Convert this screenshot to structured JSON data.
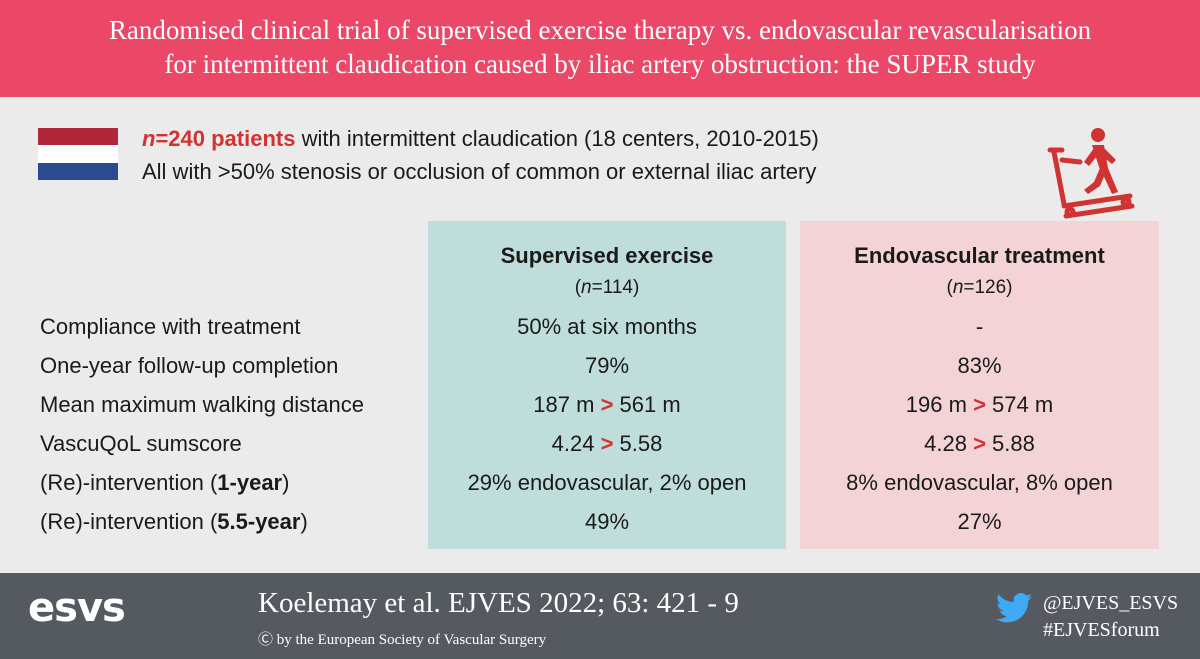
{
  "header": {
    "line1": "Randomised clinical trial of supervised exercise therapy vs. endovascular revascularisation",
    "line2": "for intermittent claudication caused by iliac artery obstruction: the SUPER study"
  },
  "intro": {
    "n_label": "n",
    "n_value": "=240 patients",
    "line1_rest": " with intermittent claudication (18 centers, 2010-2015)",
    "line2": "All with >50% stenosis or occlusion of common or external iliac artery"
  },
  "icons": {
    "flag": "netherlands-flag",
    "treadmill": "treadmill-icon",
    "twitter": "twitter-bird-icon"
  },
  "colors": {
    "header": "#ea4866",
    "accent": "#d13232",
    "exercise_bg": "#bfdedb",
    "endo_bg": "#f3d3d6",
    "footer": "#555a60"
  },
  "columns": {
    "exercise": {
      "title": "Supervised exercise",
      "n_open": "(",
      "n_label": "n",
      "n_value": "=114)"
    },
    "endovascular": {
      "title": "Endovascular treatment",
      "n_open": "(",
      "n_label": "n",
      "n_value": "=126)"
    }
  },
  "rows": [
    {
      "label": "Compliance with treatment",
      "exercise": "50% at six months",
      "endovascular": "-"
    },
    {
      "label": "One-year follow-up completion",
      "exercise": "79%",
      "endovascular": "83%"
    },
    {
      "label": "Mean maximum walking distance",
      "exercise_a": "187 m",
      "exercise_b": "561 m",
      "endo_a": "196 m",
      "endo_b": "574 m",
      "arrow": ">"
    },
    {
      "label": "VascuQoL sumscore",
      "exercise_a": "4.24",
      "exercise_b": "5.58",
      "endo_a": "4.28",
      "endo_b": "5.88",
      "arrow": ">"
    },
    {
      "label_pre": "(Re)-intervention (",
      "label_bold": "1-year",
      "label_post": ")",
      "exercise": "29% endovascular, 2% open",
      "endovascular": "8% endovascular, 8% open"
    },
    {
      "label_pre": "(Re)-intervention (",
      "label_bold": "5.5-year",
      "label_post": ")",
      "exercise": "49%",
      "endovascular": "27%"
    }
  ],
  "footer": {
    "logo": "esvs",
    "citation": "Koelemay et al. EJVES 2022; 63: 421 - 9",
    "copyright": "Ⓒ by the European Society of Vascular Surgery",
    "handle": "@EJVES_ESVS",
    "hashtag": "#EJVESforum"
  }
}
